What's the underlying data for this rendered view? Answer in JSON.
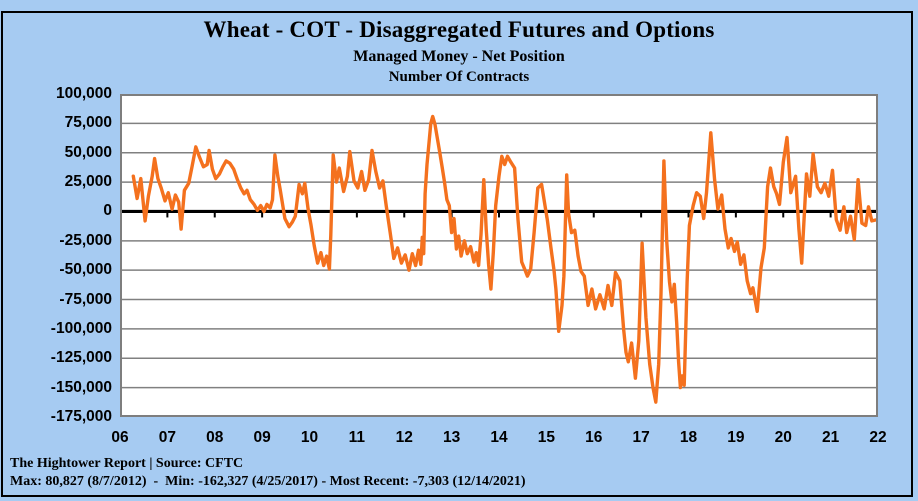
{
  "title": "Wheat - COT - Disaggregated  Futures and Options",
  "subtitle": "Managed Money - Net Position",
  "units_line": "Number Of Contracts",
  "footer": {
    "source_line": "The Hightower Report | Source: CFTC",
    "stats_line": "Max: 80,827 (8/7/2012)  -  Min: -162,327 (4/25/2017) - Most Recent: -7,303 (12/14/2021)"
  },
  "colors": {
    "background": "#A6CBF2",
    "outer_border": "#000000",
    "plot_background": "#FFFFFF",
    "plot_border": "#7E7E7E",
    "gridline": "#808080",
    "zero_line": "#000000",
    "series_line": "#F4711E",
    "text": "#000000"
  },
  "chart_data": {
    "type": "line",
    "title": "Wheat - COT - Disaggregated Futures and Options",
    "subtitle": "Managed Money - Net Position",
    "ylabel": "Number Of Contracts",
    "xlabel": "",
    "legend": "none",
    "grid": "horizontal",
    "x_axis": {
      "labels": [
        "06",
        "07",
        "08",
        "09",
        "10",
        "11",
        "12",
        "13",
        "14",
        "15",
        "16",
        "17",
        "18",
        "19",
        "20",
        "21",
        "22"
      ],
      "range": [
        2006,
        2022
      ]
    },
    "y_axis": {
      "tick_values": [
        100000,
        75000,
        50000,
        25000,
        0,
        -25000,
        -50000,
        -75000,
        -100000,
        -125000,
        -150000,
        -175000
      ],
      "tick_labels": [
        "100,000",
        "75,000",
        "50,000",
        "25,000",
        "0",
        "-25,000",
        "-50,000",
        "-75,000",
        "-100,000",
        "-125,000",
        "-150,000",
        "-175,000"
      ],
      "range": [
        -175000,
        100000
      ]
    },
    "annotations": {
      "max": {
        "value": 80827,
        "date": "8/7/2012"
      },
      "min": {
        "value": -162327,
        "date": "4/25/2017"
      },
      "most_recent": {
        "value": -7303,
        "date": "12/14/2021"
      }
    },
    "series": [
      {
        "name": "Managed Money Net Position (contracts)",
        "color": "#F4711E",
        "points": [
          [
            2006.28,
            30000
          ],
          [
            2006.36,
            11000
          ],
          [
            2006.44,
            28000
          ],
          [
            2006.53,
            -8000
          ],
          [
            2006.6,
            13000
          ],
          [
            2006.68,
            30000
          ],
          [
            2006.73,
            45000
          ],
          [
            2006.8,
            28000
          ],
          [
            2006.87,
            20000
          ],
          [
            2006.95,
            9000
          ],
          [
            2007.02,
            16000
          ],
          [
            2007.1,
            2000
          ],
          [
            2007.17,
            14000
          ],
          [
            2007.24,
            8000
          ],
          [
            2007.29,
            -15000
          ],
          [
            2007.36,
            18000
          ],
          [
            2007.45,
            24000
          ],
          [
            2007.52,
            38000
          ],
          [
            2007.6,
            55000
          ],
          [
            2007.68,
            46000
          ],
          [
            2007.76,
            38000
          ],
          [
            2007.84,
            40000
          ],
          [
            2007.88,
            52000
          ],
          [
            2007.95,
            36000
          ],
          [
            2008.02,
            28000
          ],
          [
            2008.1,
            32000
          ],
          [
            2008.17,
            38000
          ],
          [
            2008.24,
            43000
          ],
          [
            2008.32,
            41000
          ],
          [
            2008.4,
            36000
          ],
          [
            2008.47,
            28000
          ],
          [
            2008.55,
            20000
          ],
          [
            2008.62,
            15000
          ],
          [
            2008.68,
            18000
          ],
          [
            2008.75,
            10000
          ],
          [
            2008.83,
            6000
          ],
          [
            2008.9,
            1000
          ],
          [
            2008.97,
            5000
          ],
          [
            2009.04,
            0
          ],
          [
            2009.1,
            6000
          ],
          [
            2009.17,
            3000
          ],
          [
            2009.22,
            10000
          ],
          [
            2009.27,
            48000
          ],
          [
            2009.33,
            30000
          ],
          [
            2009.38,
            19000
          ],
          [
            2009.48,
            -6000
          ],
          [
            2009.57,
            -13000
          ],
          [
            2009.64,
            -9000
          ],
          [
            2009.7,
            -4000
          ],
          [
            2009.78,
            23000
          ],
          [
            2009.85,
            15000
          ],
          [
            2009.9,
            24000
          ],
          [
            2009.97,
            2000
          ],
          [
            2010.03,
            -11000
          ],
          [
            2010.1,
            -29000
          ],
          [
            2010.17,
            -44000
          ],
          [
            2010.24,
            -35000
          ],
          [
            2010.3,
            -46000
          ],
          [
            2010.36,
            -38000
          ],
          [
            2010.42,
            -49000
          ],
          [
            2010.45,
            -20000
          ],
          [
            2010.5,
            48000
          ],
          [
            2010.57,
            25000
          ],
          [
            2010.63,
            37000
          ],
          [
            2010.72,
            17000
          ],
          [
            2010.8,
            30000
          ],
          [
            2010.85,
            51000
          ],
          [
            2010.94,
            26000
          ],
          [
            2011.02,
            20000
          ],
          [
            2011.1,
            34000
          ],
          [
            2011.17,
            18000
          ],
          [
            2011.25,
            27000
          ],
          [
            2011.32,
            52000
          ],
          [
            2011.4,
            34000
          ],
          [
            2011.48,
            20000
          ],
          [
            2011.55,
            26000
          ],
          [
            2011.62,
            5000
          ],
          [
            2011.7,
            -17000
          ],
          [
            2011.78,
            -40000
          ],
          [
            2011.86,
            -31000
          ],
          [
            2011.94,
            -44000
          ],
          [
            2012.02,
            -37000
          ],
          [
            2012.1,
            -50000
          ],
          [
            2012.17,
            -36000
          ],
          [
            2012.24,
            -46000
          ],
          [
            2012.3,
            -33000
          ],
          [
            2012.35,
            -45000
          ],
          [
            2012.38,
            -22000
          ],
          [
            2012.41,
            -36000
          ],
          [
            2012.44,
            15000
          ],
          [
            2012.48,
            40000
          ],
          [
            2012.53,
            62000
          ],
          [
            2012.56,
            75000
          ],
          [
            2012.6,
            80827
          ],
          [
            2012.65,
            74000
          ],
          [
            2012.7,
            62000
          ],
          [
            2012.75,
            50000
          ],
          [
            2012.8,
            38000
          ],
          [
            2012.85,
            25000
          ],
          [
            2012.9,
            10000
          ],
          [
            2012.95,
            5000
          ],
          [
            2013.0,
            -18000
          ],
          [
            2013.05,
            -6000
          ],
          [
            2013.1,
            -32000
          ],
          [
            2013.15,
            -21000
          ],
          [
            2013.2,
            -38000
          ],
          [
            2013.27,
            -25000
          ],
          [
            2013.33,
            -36000
          ],
          [
            2013.4,
            -30000
          ],
          [
            2013.47,
            -43000
          ],
          [
            2013.52,
            -35000
          ],
          [
            2013.57,
            -46000
          ],
          [
            2013.62,
            -20000
          ],
          [
            2013.68,
            27000
          ],
          [
            2013.73,
            -15000
          ],
          [
            2013.78,
            -45000
          ],
          [
            2013.83,
            -66000
          ],
          [
            2013.88,
            -35000
          ],
          [
            2013.93,
            5000
          ],
          [
            2014.0,
            30000
          ],
          [
            2014.06,
            47000
          ],
          [
            2014.12,
            40000
          ],
          [
            2014.18,
            47000
          ],
          [
            2014.25,
            42000
          ],
          [
            2014.33,
            37000
          ],
          [
            2014.4,
            -7000
          ],
          [
            2014.48,
            -43000
          ],
          [
            2014.55,
            -50000
          ],
          [
            2014.6,
            -55000
          ],
          [
            2014.67,
            -49000
          ],
          [
            2014.74,
            -18000
          ],
          [
            2014.82,
            20000
          ],
          [
            2014.9,
            23000
          ],
          [
            2014.97,
            5000
          ],
          [
            2015.02,
            -7000
          ],
          [
            2015.1,
            -32000
          ],
          [
            2015.16,
            -50000
          ],
          [
            2015.2,
            -66000
          ],
          [
            2015.26,
            -102000
          ],
          [
            2015.33,
            -80000
          ],
          [
            2015.37,
            -55000
          ],
          [
            2015.43,
            31000
          ],
          [
            2015.47,
            -2000
          ],
          [
            2015.53,
            -18000
          ],
          [
            2015.6,
            -16000
          ],
          [
            2015.67,
            -38000
          ],
          [
            2015.73,
            -51000
          ],
          [
            2015.8,
            -55000
          ],
          [
            2015.88,
            -80000
          ],
          [
            2015.96,
            -66000
          ],
          [
            2016.04,
            -83000
          ],
          [
            2016.13,
            -71000
          ],
          [
            2016.22,
            -83000
          ],
          [
            2016.3,
            -63000
          ],
          [
            2016.38,
            -80000
          ],
          [
            2016.46,
            -52000
          ],
          [
            2016.55,
            -59000
          ],
          [
            2016.63,
            -100000
          ],
          [
            2016.68,
            -120000
          ],
          [
            2016.73,
            -128000
          ],
          [
            2016.8,
            -112000
          ],
          [
            2016.88,
            -142000
          ],
          [
            2016.95,
            -110000
          ],
          [
            2017.02,
            -27000
          ],
          [
            2017.1,
            -90000
          ],
          [
            2017.18,
            -130000
          ],
          [
            2017.25,
            -150000
          ],
          [
            2017.31,
            -162327
          ],
          [
            2017.37,
            -130000
          ],
          [
            2017.42,
            -70000
          ],
          [
            2017.48,
            43000
          ],
          [
            2017.54,
            -25000
          ],
          [
            2017.6,
            -60000
          ],
          [
            2017.65,
            -77000
          ],
          [
            2017.7,
            -62000
          ],
          [
            2017.75,
            -95000
          ],
          [
            2017.79,
            -128000
          ],
          [
            2017.83,
            -150000
          ],
          [
            2017.87,
            -140000
          ],
          [
            2017.91,
            -148000
          ],
          [
            2017.97,
            -60000
          ],
          [
            2018.02,
            -12000
          ],
          [
            2018.1,
            5000
          ],
          [
            2018.17,
            16000
          ],
          [
            2018.25,
            13000
          ],
          [
            2018.32,
            -6000
          ],
          [
            2018.38,
            16000
          ],
          [
            2018.47,
            67000
          ],
          [
            2018.55,
            27000
          ],
          [
            2018.62,
            2000
          ],
          [
            2018.7,
            14000
          ],
          [
            2018.77,
            -15000
          ],
          [
            2018.84,
            -31000
          ],
          [
            2018.9,
            -23000
          ],
          [
            2018.97,
            -34000
          ],
          [
            2019.03,
            -26000
          ],
          [
            2019.1,
            -45000
          ],
          [
            2019.17,
            -37000
          ],
          [
            2019.24,
            -59000
          ],
          [
            2019.31,
            -70000
          ],
          [
            2019.36,
            -65000
          ],
          [
            2019.45,
            -85000
          ],
          [
            2019.53,
            -48000
          ],
          [
            2019.6,
            -31000
          ],
          [
            2019.67,
            21000
          ],
          [
            2019.73,
            37000
          ],
          [
            2019.8,
            21000
          ],
          [
            2019.86,
            15000
          ],
          [
            2019.92,
            6000
          ],
          [
            2020.0,
            42000
          ],
          [
            2020.08,
            63000
          ],
          [
            2020.16,
            16000
          ],
          [
            2020.26,
            30000
          ],
          [
            2020.33,
            -15000
          ],
          [
            2020.39,
            -44000
          ],
          [
            2020.49,
            32000
          ],
          [
            2020.56,
            13000
          ],
          [
            2020.63,
            49000
          ],
          [
            2020.72,
            21000
          ],
          [
            2020.8,
            16000
          ],
          [
            2020.88,
            24000
          ],
          [
            2020.96,
            13000
          ],
          [
            2021.04,
            35000
          ],
          [
            2021.12,
            -7000
          ],
          [
            2021.2,
            -16000
          ],
          [
            2021.28,
            4000
          ],
          [
            2021.34,
            -18000
          ],
          [
            2021.42,
            -4000
          ],
          [
            2021.5,
            -24000
          ],
          [
            2021.58,
            27000
          ],
          [
            2021.66,
            -10000
          ],
          [
            2021.74,
            -12000
          ],
          [
            2021.8,
            4000
          ],
          [
            2021.87,
            -8000
          ],
          [
            2021.95,
            -7303
          ]
        ]
      }
    ]
  }
}
